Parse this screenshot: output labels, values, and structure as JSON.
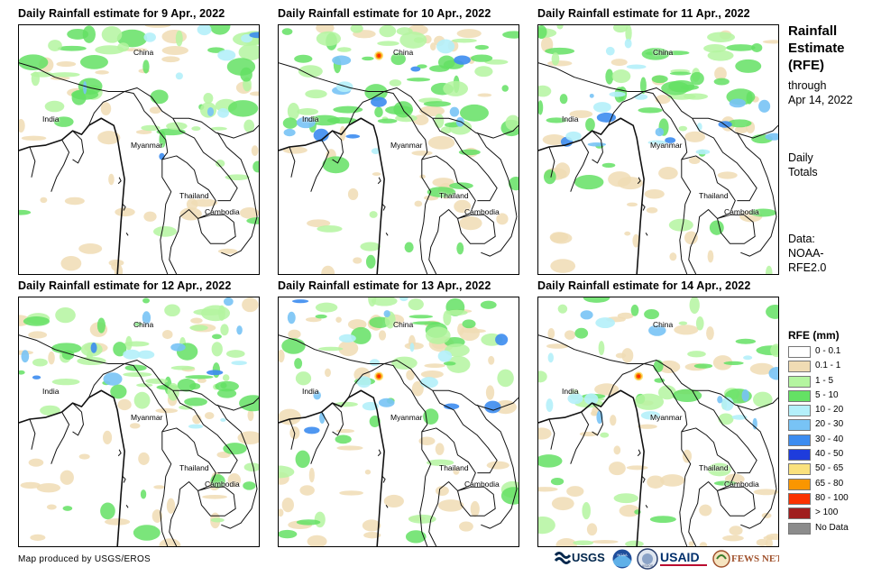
{
  "sidebar": {
    "title_lines": [
      "Rainfall",
      "Estimate",
      "(RFE)"
    ],
    "period_lines": [
      "through",
      "Apr 14, 2022"
    ],
    "totals_lines": [
      "Daily",
      "Totals"
    ],
    "data_lines": [
      "Data:",
      "NOAA-",
      "RFE2.0"
    ]
  },
  "legend": {
    "title": "RFE (mm)",
    "classes": [
      {
        "label": "0 - 0.1",
        "color": "#ffffff"
      },
      {
        "label": "0.1 - 1",
        "color": "#f0dcb4"
      },
      {
        "label": "1 - 5",
        "color": "#b4f5a0"
      },
      {
        "label": "5 - 10",
        "color": "#64e164"
      },
      {
        "label": "10 - 20",
        "color": "#b4f0fa"
      },
      {
        "label": "20 - 30",
        "color": "#78c3f5"
      },
      {
        "label": "30 - 40",
        "color": "#3c8cf0"
      },
      {
        "label": "40 - 50",
        "color": "#1e3cdc"
      },
      {
        "label": "50 - 65",
        "color": "#fae17d"
      },
      {
        "label": "65 - 80",
        "color": "#fa9600"
      },
      {
        "label": "80 - 100",
        "color": "#fa3200"
      },
      {
        "label": "> 100",
        "color": "#a01e1e"
      },
      {
        "label": "No Data",
        "color": "#8c8c8c"
      }
    ]
  },
  "panels": [
    {
      "title": "Daily Rainfall estimate for 9 Apr., 2022",
      "seed": 9,
      "green": 0.22,
      "tan": 0.16,
      "blue": 0.05,
      "red": 0
    },
    {
      "title": "Daily Rainfall estimate for 10 Apr., 2022",
      "seed": 10,
      "green": 0.3,
      "tan": 0.14,
      "blue": 0.07,
      "red": 1
    },
    {
      "title": "Daily Rainfall estimate for 11 Apr., 2022",
      "seed": 11,
      "green": 0.24,
      "tan": 0.16,
      "blue": 0.1,
      "red": 0
    },
    {
      "title": "Daily Rainfall estimate for 12 Apr., 2022",
      "seed": 12,
      "green": 0.28,
      "tan": 0.18,
      "blue": 0.07,
      "red": 0
    },
    {
      "title": "Daily Rainfall estimate for 13 Apr., 2022",
      "seed": 13,
      "green": 0.2,
      "tan": 0.24,
      "blue": 0.09,
      "red": 1
    },
    {
      "title": "Daily Rainfall estimate for 14 Apr., 2022",
      "seed": 14,
      "green": 0.2,
      "tan": 0.22,
      "blue": 0.08,
      "red": 1
    }
  ],
  "place_labels": {
    "china": "China",
    "india": "India",
    "myanmar": "Myanmar",
    "thailand": "Thailand",
    "cambodia": "Cambodia"
  },
  "footer": {
    "credit": "Map produced by USGS/EROS",
    "logos": [
      "USGS",
      "NOAA",
      "USDOS",
      "USAID",
      "FEWS NET"
    ]
  }
}
